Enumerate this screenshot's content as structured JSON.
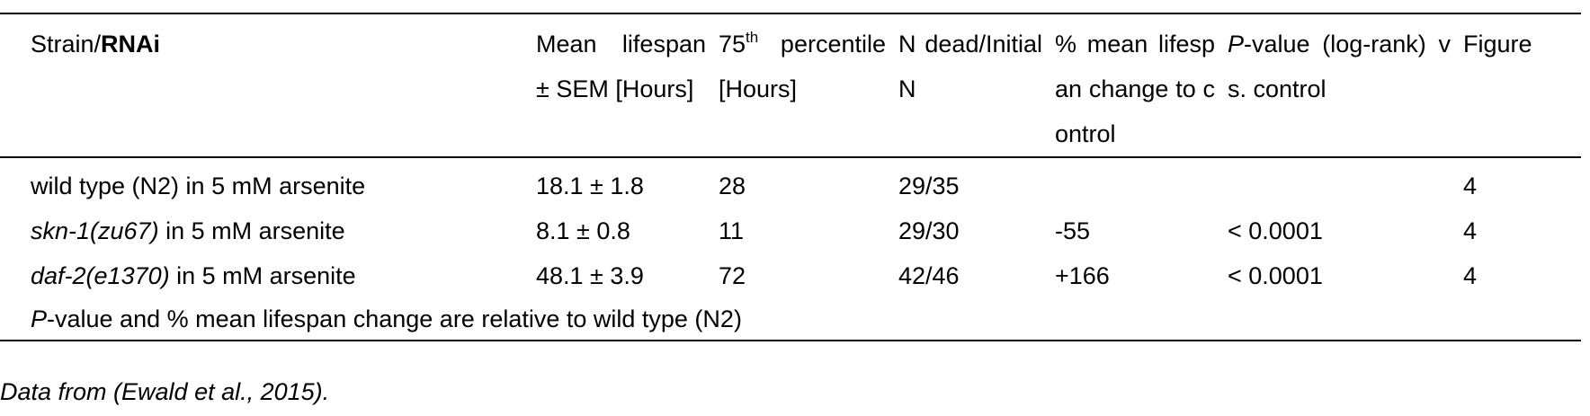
{
  "table": {
    "header": [
      [
        {
          "text": "Strain/"
        },
        {
          "text": "RNAi",
          "style": "bold"
        }
      ],
      [
        {
          "text": "Mean lifespan ± SEM [Hours]"
        }
      ],
      [
        {
          "text": "75"
        },
        {
          "text": "th",
          "style": "sup"
        },
        {
          "text": " percentile [Hours]"
        }
      ],
      [
        {
          "text": "N dead/Initial N"
        }
      ],
      [
        {
          "text": "% mean lifespan change to control"
        }
      ],
      [
        {
          "text": "P",
          "style": "italic"
        },
        {
          "text": "-value (log-rank) vs. control"
        }
      ],
      [
        {
          "text": "Figure"
        }
      ]
    ],
    "rows": [
      [
        [
          {
            "text": "wild type (N2) in 5 mM arsenite"
          }
        ],
        "18.1 ± 1.8",
        "28",
        "29/35",
        null,
        null,
        "4"
      ],
      [
        [
          {
            "text": "skn-1(zu67)",
            "style": "italic"
          },
          {
            "text": " in 5 mM arsenite"
          }
        ],
        "8.1 ± 0.8",
        "11",
        "29/30",
        "-55",
        "< 0.0001",
        "4"
      ],
      [
        [
          {
            "text": "daf-2(e1370)",
            "style": "italic"
          },
          {
            "text": " in 5 mM arsenite"
          }
        ],
        "48.1 ± 3.9",
        "72",
        "42/46",
        "+166",
        "< 0.0001",
        "4"
      ]
    ],
    "footnote": [
      {
        "text": "P",
        "style": "italic"
      },
      {
        "text": "-value and % mean lifespan change are relative to wild type (N2)"
      }
    ]
  },
  "caption": "Data from (Ewald et al., 2015)."
}
